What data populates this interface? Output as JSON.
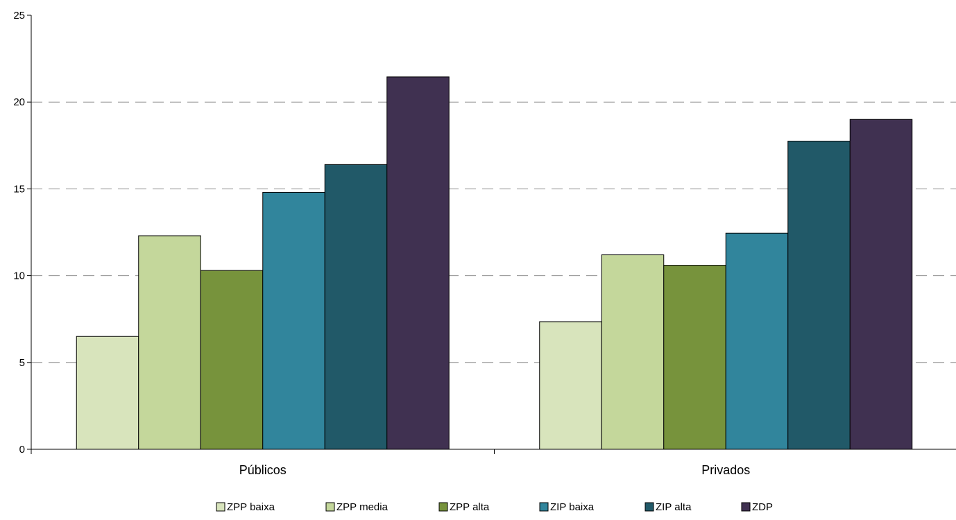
{
  "chart_data": {
    "type": "bar",
    "title": "",
    "xlabel": "",
    "ylabel": "",
    "ylim": [
      0,
      25
    ],
    "yticks": [
      "0",
      "5",
      "10",
      "15",
      "20",
      "25"
    ],
    "grid": "horizontal dashed",
    "legend_position": "bottom",
    "categories": [
      "Públicos",
      "Privados"
    ],
    "series": [
      {
        "name": "ZPP baixa",
        "color": "#d8e4bc",
        "values": [
          6.5,
          7.35
        ]
      },
      {
        "name": "ZPP media",
        "color": "#c4d79b",
        "values": [
          12.3,
          11.2
        ]
      },
      {
        "name": "ZPP alta",
        "color": "#77933c",
        "values": [
          10.3,
          10.6
        ]
      },
      {
        "name": "ZIP baixa",
        "color": "#31859c",
        "values": [
          14.8,
          12.45
        ]
      },
      {
        "name": "ZIP alta",
        "color": "#215968",
        "values": [
          16.4,
          17.75
        ]
      },
      {
        "name": "ZDP",
        "color": "#403151",
        "values": [
          21.45,
          19.0
        ]
      }
    ]
  }
}
